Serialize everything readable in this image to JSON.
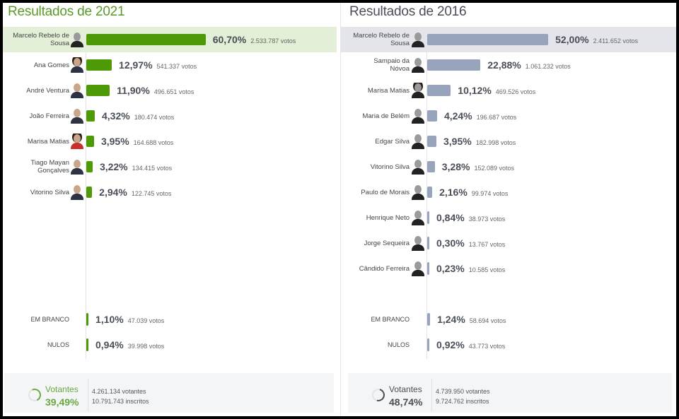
{
  "panels": {
    "left": {
      "title": "Resultados de 2021",
      "bar_color": "#4e9a06",
      "highlight_color": "#e3efd6",
      "candidates": [
        {
          "name": "Marcelo Rebelo de Sousa",
          "name_l1": "Marcelo Rebelo de",
          "name_l2": "Sousa",
          "pct": "60,70%",
          "votes": "2.533.787 votos",
          "value": 60.7
        },
        {
          "name": "Ana Gomes",
          "name_l1": "Ana Gomes",
          "name_l2": "",
          "pct": "12,97%",
          "votes": "541.337 votos",
          "value": 12.97
        },
        {
          "name": "André Ventura",
          "name_l1": "André Ventura",
          "name_l2": "",
          "pct": "11,90%",
          "votes": "496.651 votos",
          "value": 11.9
        },
        {
          "name": "João Ferreira",
          "name_l1": "João Ferreira",
          "name_l2": "",
          "pct": "4,32%",
          "votes": "180.474 votos",
          "value": 4.32
        },
        {
          "name": "Marisa Matias",
          "name_l1": "Marisa Matias",
          "name_l2": "",
          "pct": "3,95%",
          "votes": "164.688 votos",
          "value": 3.95
        },
        {
          "name": "Tiago Mayan Gonçalves",
          "name_l1": "Tiago Mayan",
          "name_l2": "Gonçalves",
          "pct": "3,22%",
          "votes": "134.415 votos",
          "value": 3.22
        },
        {
          "name": "Vitorino Silva",
          "name_l1": "Vitorino Silva",
          "name_l2": "",
          "pct": "2,94%",
          "votes": "122.745 votos",
          "value": 2.94
        }
      ],
      "special": [
        {
          "name": "EM BRANCO",
          "pct": "1,10%",
          "votes": "47.039 votos",
          "value": 1.1
        },
        {
          "name": "NULOS",
          "pct": "0,94%",
          "votes": "39.998 votos",
          "value": 0.94
        }
      ],
      "footer": {
        "label": "Votantes",
        "turnout": "39,49%",
        "voters": "4.261.134 votantes",
        "registered": "10.791.743 inscritos"
      }
    },
    "right": {
      "title": "Resultados de 2016",
      "bar_color": "#98a4bb",
      "highlight_color": "#e4e5ea",
      "candidates": [
        {
          "name": "Marcelo Rebelo de Sousa",
          "name_l1": "Marcelo Rebelo de",
          "name_l2": "Sousa",
          "pct": "52,00%",
          "votes": "2.411.652 votos",
          "value": 52.0
        },
        {
          "name": "Sampaio da Nóvoa",
          "name_l1": "Sampaio da",
          "name_l2": "Nóvoa",
          "pct": "22,88%",
          "votes": "1.061.232 votos",
          "value": 22.88
        },
        {
          "name": "Marisa Matias",
          "name_l1": "Marisa Matias",
          "name_l2": "",
          "pct": "10,12%",
          "votes": "469.526 votos",
          "value": 10.12
        },
        {
          "name": "Maria de Belém",
          "name_l1": "Maria de Belém",
          "name_l2": "",
          "pct": "4,24%",
          "votes": "196.687 votos",
          "value": 4.24
        },
        {
          "name": "Edgar Silva",
          "name_l1": "Edgar Silva",
          "name_l2": "",
          "pct": "3,95%",
          "votes": "182.998 votos",
          "value": 3.95
        },
        {
          "name": "Vitorino Silva",
          "name_l1": "Vitorino Silva",
          "name_l2": "",
          "pct": "3,28%",
          "votes": "152.089 votos",
          "value": 3.28
        },
        {
          "name": "Paulo de Morais",
          "name_l1": "Paulo de Morais",
          "name_l2": "",
          "pct": "2,16%",
          "votes": "99.974 votos",
          "value": 2.16
        },
        {
          "name": "Henrique Neto",
          "name_l1": "Henrique Neto",
          "name_l2": "",
          "pct": "0,84%",
          "votes": "38.973 votos",
          "value": 0.84
        },
        {
          "name": "Jorge Sequeira",
          "name_l1": "Jorge Sequeira",
          "name_l2": "",
          "pct": "0,30%",
          "votes": "13.767 votos",
          "value": 0.3
        },
        {
          "name": "Cândido Ferreira",
          "name_l1": "Cândido Ferreira",
          "name_l2": "",
          "pct": "0,23%",
          "votes": "10.585 votos",
          "value": 0.23
        }
      ],
      "special": [
        {
          "name": "EM BRANCO",
          "pct": "1,24%",
          "votes": "58.694 votos",
          "value": 1.24
        },
        {
          "name": "NULOS",
          "pct": "0,92%",
          "votes": "43.773 votos",
          "value": 0.92
        }
      ],
      "footer": {
        "label": "Votantes",
        "turnout": "48,74%",
        "voters": "4.739.950 votantes",
        "registered": "9.724.762 inscritos"
      }
    }
  },
  "chart_data": [
    {
      "type": "bar",
      "orientation": "horizontal",
      "title": "Resultados de 2021",
      "categories": [
        "Marcelo Rebelo de Sousa",
        "Ana Gomes",
        "André Ventura",
        "João Ferreira",
        "Marisa Matias",
        "Tiago Mayan Gonçalves",
        "Vitorino Silva",
        "EM BRANCO",
        "NULOS"
      ],
      "values": [
        60.7,
        12.97,
        11.9,
        4.32,
        3.95,
        3.22,
        2.94,
        1.1,
        0.94
      ],
      "votes": [
        2533787,
        541337,
        496651,
        180474,
        164688,
        134415,
        122745,
        47039,
        39998
      ],
      "unit": "%",
      "turnout_pct": 39.49,
      "voters": 4261134,
      "registered": 10791743,
      "xlabel": "",
      "ylabel": "",
      "grid": false,
      "legend": false
    },
    {
      "type": "bar",
      "orientation": "horizontal",
      "title": "Resultados de 2016",
      "categories": [
        "Marcelo Rebelo de Sousa",
        "Sampaio da Nóvoa",
        "Marisa Matias",
        "Maria de Belém",
        "Edgar Silva",
        "Vitorino Silva",
        "Paulo de Morais",
        "Henrique Neto",
        "Jorge Sequeira",
        "Cândido Ferreira",
        "EM BRANCO",
        "NULOS"
      ],
      "values": [
        52.0,
        22.88,
        10.12,
        4.24,
        3.95,
        3.28,
        2.16,
        0.84,
        0.3,
        0.23,
        1.24,
        0.92
      ],
      "votes": [
        2411652,
        1061232,
        469526,
        196687,
        182998,
        152089,
        99974,
        38973,
        13767,
        10585,
        58694,
        43773
      ],
      "unit": "%",
      "turnout_pct": 48.74,
      "voters": 4739950,
      "registered": 9724762,
      "xlabel": "",
      "ylabel": "",
      "grid": false,
      "legend": false
    }
  ]
}
